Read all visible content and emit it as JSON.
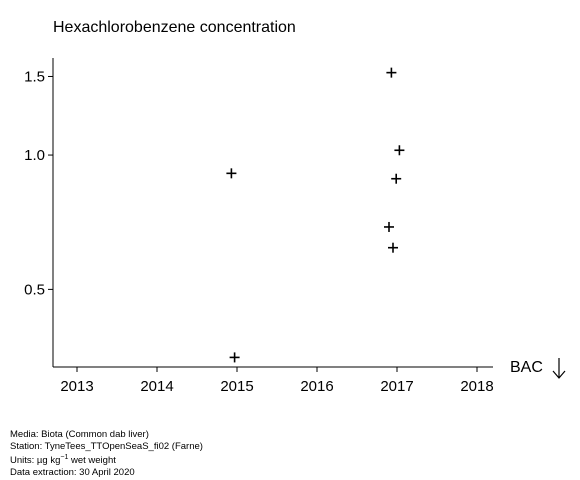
{
  "chart_data": {
    "type": "scatter",
    "title": "Hexachlorobenzene concentration",
    "x_ticks": [
      2013,
      2014,
      2015,
      2016,
      2017,
      2018
    ],
    "y_ticks": [
      {
        "value": 0.5,
        "label": "0.5"
      },
      {
        "value": 1.0,
        "label": "1.0"
      },
      {
        "value": 1.5,
        "label": "1.5"
      }
    ],
    "y_scale": "log",
    "xlim": [
      2012.7,
      2018.2
    ],
    "ylim": [
      0.335,
      1.65
    ],
    "marker": "+",
    "points": [
      {
        "x": 2014.93,
        "y": 0.91
      },
      {
        "x": 2014.97,
        "y": 0.352
      },
      {
        "x": 2016.93,
        "y": 1.53
      },
      {
        "x": 2017.03,
        "y": 1.025
      },
      {
        "x": 2016.99,
        "y": 0.885
      },
      {
        "x": 2016.9,
        "y": 0.69
      },
      {
        "x": 2016.95,
        "y": 0.62
      }
    ],
    "legend_marker": {
      "label": "BAC",
      "symbol": "arrow-down"
    }
  },
  "footer": {
    "media": "Media: Biota (Common dab liver)",
    "station": "Station: TyneTees_TTOpenSeaS_fi02 (Farne)",
    "units_prefix": "Units:  µg kg",
    "units_exp": "−1",
    "units_suffix": " wet weight",
    "extraction": "Data extraction: 30 April 2020"
  }
}
